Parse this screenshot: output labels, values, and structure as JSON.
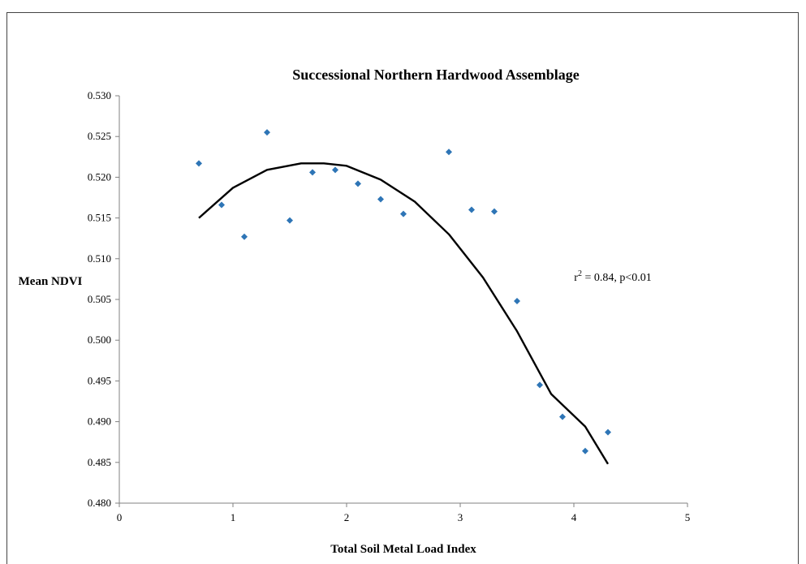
{
  "chart_data": {
    "type": "scatter",
    "title": "Successional Northern Hardwood Assemblage",
    "xlabel": "Total Soil Metal Load Index",
    "ylabel": "Mean NDVI",
    "xlim": [
      0,
      5
    ],
    "ylim": [
      0.48,
      0.53
    ],
    "x_ticks": [
      "0",
      "1",
      "2",
      "3",
      "4",
      "5"
    ],
    "y_ticks": [
      "0.480",
      "0.485",
      "0.490",
      "0.495",
      "0.500",
      "0.505",
      "0.510",
      "0.515",
      "0.520",
      "0.525",
      "0.530"
    ],
    "grid": false,
    "legend": "none",
    "marker_color": "#2e75b6",
    "series": [
      {
        "x": [
          0.7,
          0.9,
          1.1,
          1.3,
          1.5,
          1.7,
          1.9,
          2.1,
          2.3,
          2.5,
          2.9,
          3.1,
          3.3,
          3.5,
          3.7,
          3.9,
          4.1,
          4.3
        ],
        "y": [
          0.5217,
          0.5166,
          0.5127,
          0.5255,
          0.5147,
          0.5206,
          0.5209,
          0.5192,
          0.5173,
          0.5155,
          0.5231,
          0.516,
          0.5158,
          0.5048,
          0.4945,
          0.4906,
          0.4864,
          0.4887
        ]
      }
    ],
    "trendline": {
      "type": "polynomial-2",
      "x": [
        0.7,
        1.0,
        1.3,
        1.6,
        1.8,
        2.0,
        2.3,
        2.6,
        2.9,
        3.2,
        3.5,
        3.8,
        4.1,
        4.3
      ],
      "y": [
        0.515,
        0.5187,
        0.5209,
        0.5217,
        0.5217,
        0.5214,
        0.5197,
        0.517,
        0.513,
        0.5077,
        0.5011,
        0.4934,
        0.4894,
        0.4848
      ]
    },
    "annotation": {
      "text_prefix": "r",
      "superscript": "2",
      "text_suffix": " = 0.84, p<0.01"
    }
  }
}
